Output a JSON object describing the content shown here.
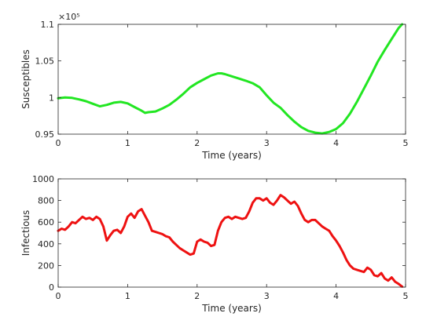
{
  "chart_data": [
    {
      "type": "line",
      "xlabel": "Time (years)",
      "ylabel": "Susceptibles",
      "xlim": [
        0,
        5
      ],
      "ylim": [
        95000,
        110000
      ],
      "xticks": [
        0,
        1,
        2,
        3,
        4,
        5
      ],
      "xtick_labels": [
        "0",
        "1",
        "2",
        "3",
        "4",
        "5"
      ],
      "yticks": [
        95000,
        100000,
        105000,
        110000
      ],
      "ytick_labels": [
        "0.95",
        "1",
        "1.05",
        "1.1"
      ],
      "y_exponent_label": "×10⁵",
      "grid": false,
      "series": [
        {
          "color": "#22e622",
          "x": [
            0,
            0.1,
            0.2,
            0.3,
            0.4,
            0.5,
            0.6,
            0.7,
            0.8,
            0.9,
            1.0,
            1.1,
            1.2,
            1.25,
            1.3,
            1.4,
            1.5,
            1.6,
            1.7,
            1.8,
            1.9,
            2.0,
            2.1,
            2.2,
            2.3,
            2.35,
            2.4,
            2.5,
            2.6,
            2.7,
            2.8,
            2.9,
            3.0,
            3.1,
            3.2,
            3.3,
            3.4,
            3.5,
            3.6,
            3.7,
            3.8,
            3.9,
            4.0,
            4.1,
            4.2,
            4.3,
            4.4,
            4.5,
            4.6,
            4.7,
            4.8,
            4.9,
            4.95
          ],
          "y": [
            99900,
            100000,
            99950,
            99750,
            99500,
            99150,
            98800,
            99000,
            99300,
            99400,
            99200,
            98700,
            98200,
            97900,
            98000,
            98100,
            98500,
            99000,
            99700,
            100500,
            101400,
            102000,
            102500,
            103000,
            103300,
            103300,
            103200,
            102900,
            102600,
            102300,
            101950,
            101400,
            100300,
            99300,
            98600,
            97600,
            96700,
            95950,
            95450,
            95200,
            95100,
            95300,
            95700,
            96500,
            97800,
            99400,
            101200,
            103000,
            104900,
            106500,
            108000,
            109500,
            110000
          ]
        }
      ]
    },
    {
      "type": "line",
      "xlabel": "Time (years)",
      "ylabel": "Infectious",
      "xlim": [
        0,
        5
      ],
      "ylim": [
        0,
        1000
      ],
      "xticks": [
        0,
        1,
        2,
        3,
        4,
        5
      ],
      "xtick_labels": [
        "0",
        "1",
        "2",
        "3",
        "4",
        "5"
      ],
      "yticks": [
        0,
        200,
        400,
        600,
        800,
        1000
      ],
      "ytick_labels": [
        "0",
        "200",
        "400",
        "600",
        "800",
        "1000"
      ],
      "grid": false,
      "series": [
        {
          "color": "#ee1111",
          "x": [
            0,
            0.05,
            0.1,
            0.15,
            0.2,
            0.25,
            0.3,
            0.35,
            0.4,
            0.45,
            0.5,
            0.55,
            0.6,
            0.65,
            0.7,
            0.75,
            0.8,
            0.85,
            0.9,
            0.95,
            1.0,
            1.05,
            1.1,
            1.15,
            1.2,
            1.25,
            1.3,
            1.35,
            1.4,
            1.45,
            1.5,
            1.55,
            1.6,
            1.65,
            1.7,
            1.75,
            1.8,
            1.85,
            1.9,
            1.95,
            2.0,
            2.05,
            2.1,
            2.15,
            2.2,
            2.25,
            2.3,
            2.35,
            2.4,
            2.45,
            2.5,
            2.55,
            2.6,
            2.65,
            2.7,
            2.75,
            2.8,
            2.85,
            2.9,
            2.95,
            3.0,
            3.05,
            3.1,
            3.15,
            3.2,
            3.25,
            3.3,
            3.35,
            3.4,
            3.45,
            3.5,
            3.55,
            3.6,
            3.65,
            3.7,
            3.75,
            3.8,
            3.85,
            3.9,
            3.95,
            4.0,
            4.05,
            4.1,
            4.15,
            4.2,
            4.25,
            4.3,
            4.35,
            4.4,
            4.45,
            4.5,
            4.55,
            4.6,
            4.65,
            4.7,
            4.75,
            4.8,
            4.85,
            4.9,
            4.95
          ],
          "y": [
            520,
            540,
            530,
            560,
            600,
            590,
            620,
            650,
            630,
            640,
            620,
            650,
            630,
            560,
            430,
            480,
            520,
            530,
            500,
            560,
            650,
            680,
            640,
            700,
            720,
            660,
            600,
            520,
            510,
            500,
            490,
            470,
            460,
            420,
            390,
            360,
            340,
            320,
            300,
            310,
            420,
            440,
            420,
            410,
            380,
            390,
            520,
            600,
            640,
            650,
            630,
            650,
            640,
            630,
            640,
            700,
            780,
            820,
            820,
            800,
            820,
            780,
            760,
            800,
            850,
            830,
            800,
            770,
            790,
            750,
            680,
            620,
            600,
            620,
            620,
            590,
            560,
            540,
            520,
            470,
            430,
            380,
            320,
            250,
            200,
            170,
            160,
            150,
            140,
            180,
            160,
            110,
            100,
            130,
            80,
            60,
            90,
            50,
            30,
            5
          ]
        }
      ]
    }
  ]
}
